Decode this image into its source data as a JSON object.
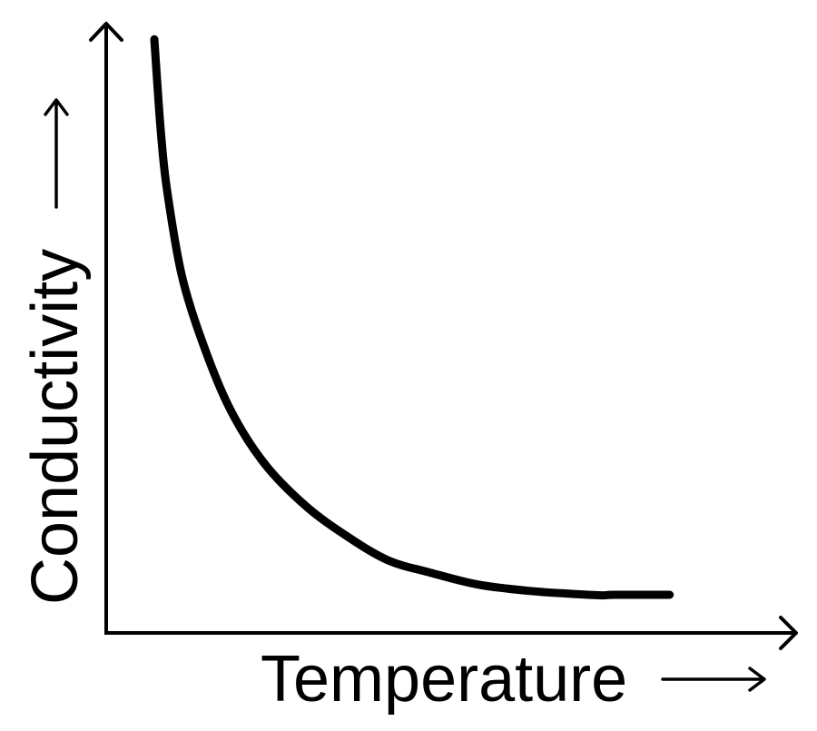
{
  "chart_data": {
    "type": "line",
    "xlabel": "Temperature",
    "ylabel": "Conductivity",
    "xlim": [
      0,
      1
    ],
    "ylim": [
      0,
      1
    ],
    "grid": false,
    "series": [
      {
        "x": [
          0.07,
          0.08,
          0.09,
          0.11,
          0.14,
          0.18,
          0.23,
          0.29,
          0.35,
          0.41,
          0.47,
          0.54,
          0.61,
          0.67,
          0.72,
          0.74,
          0.82
        ],
        "values": [
          0.98,
          0.82,
          0.72,
          0.59,
          0.48,
          0.37,
          0.28,
          0.21,
          0.16,
          0.12,
          0.1,
          0.08,
          0.07,
          0.065,
          0.062,
          0.063,
          0.063
        ]
      }
    ]
  },
  "colors": {
    "ink": "#000000",
    "background": "#ffffff"
  }
}
